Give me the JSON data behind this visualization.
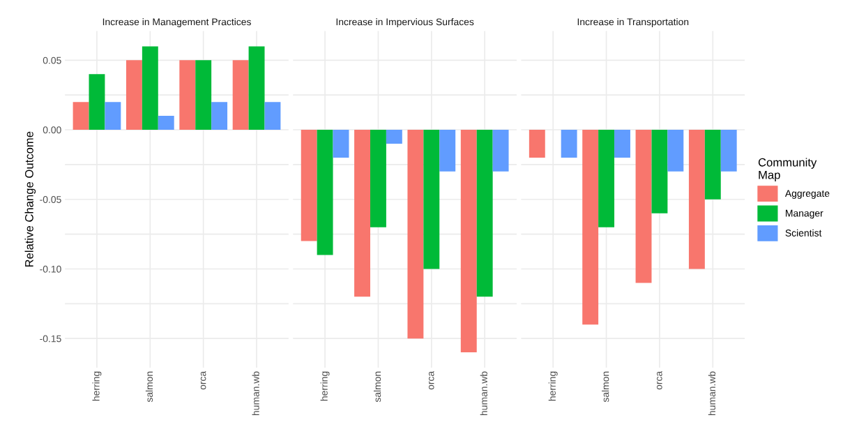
{
  "chart_data": [
    {
      "type": "bar",
      "title": "Increase in Management Practices",
      "ylabel": "Relative Change Outcome",
      "categories": [
        "herring",
        "salmon",
        "orca",
        "human.wb"
      ],
      "series": [
        {
          "color": "#f8766d",
          "values": [
            0.02,
            0.05,
            0.05,
            0.05
          ]
        },
        {
          "color": "#00ba38",
          "values": [
            0.04,
            0.06,
            0.05,
            0.06
          ]
        },
        {
          "color": "#619cff",
          "values": [
            0.02,
            0.01,
            0.02,
            0.02
          ]
        }
      ],
      "ylim": [
        -0.171,
        0.071
      ],
      "yticks": [
        {
          "value": -0.15,
          "label": "-0.15"
        },
        {
          "value": -0.125,
          "label": null
        },
        {
          "value": -0.1,
          "label": "-0.10"
        },
        {
          "value": -0.075,
          "label": null
        },
        {
          "value": -0.05,
          "label": "-0.05"
        },
        {
          "value": -0.025,
          "label": null
        },
        {
          "value": 0,
          "label": "0.00"
        },
        {
          "value": 0.025,
          "label": null
        },
        {
          "value": 0.05,
          "label": "0.05"
        }
      ],
      "grid": true
    },
    {
      "type": "bar",
      "title": "Increase in Impervious Surfaces",
      "categories": [
        "herring",
        "salmon",
        "orca",
        "human.wb"
      ],
      "series": [
        {
          "color": "#f8766d",
          "values": [
            -0.08,
            -0.12,
            -0.15,
            -0.16
          ]
        },
        {
          "color": "#00ba38",
          "values": [
            -0.09,
            -0.07,
            -0.1,
            -0.12
          ]
        },
        {
          "color": "#619cff",
          "values": [
            -0.02,
            -0.01,
            -0.03,
            -0.03
          ]
        }
      ],
      "ylim": [
        -0.171,
        0.071
      ],
      "yticks": [
        {
          "value": -0.15,
          "label": null
        },
        {
          "value": -0.125,
          "label": null
        },
        {
          "value": -0.1,
          "label": null
        },
        {
          "value": -0.075,
          "label": null
        },
        {
          "value": -0.05,
          "label": null
        },
        {
          "value": -0.025,
          "label": null
        },
        {
          "value": 0,
          "label": null
        },
        {
          "value": 0.025,
          "label": null
        },
        {
          "value": 0.05,
          "label": null
        }
      ],
      "grid": true,
      "tick_labels": "x"
    },
    {
      "type": "bar",
      "title": "Increase in Transportation",
      "categories": [
        "herring",
        "salmon",
        "orca",
        "human.wb"
      ],
      "series": [
        {
          "name": "Aggregate",
          "color": "#f8766d",
          "values": [
            -0.02,
            -0.14,
            -0.11,
            -0.1
          ]
        },
        {
          "name": "Manager",
          "color": "#00ba38",
          "values": [
            0,
            -0.07,
            -0.06,
            -0.05
          ]
        },
        {
          "name": "Scientist",
          "color": "#619cff",
          "values": [
            -0.02,
            -0.02,
            -0.03,
            -0.03
          ]
        }
      ],
      "ylim": [
        -0.171,
        0.071
      ],
      "yticks": [
        {
          "value": -0.15,
          "label": null
        },
        {
          "value": -0.125,
          "label": null
        },
        {
          "value": -0.1,
          "label": null
        },
        {
          "value": -0.075,
          "label": null
        },
        {
          "value": -0.05,
          "label": null
        },
        {
          "value": -0.025,
          "label": null
        },
        {
          "value": 0,
          "label": null
        },
        {
          "value": 0.025,
          "label": null
        },
        {
          "value": 0.05,
          "label": null
        }
      ],
      "grid": true,
      "legend": "right",
      "legend_title": "Community\nMap",
      "tick_labels": "x"
    }
  ]
}
